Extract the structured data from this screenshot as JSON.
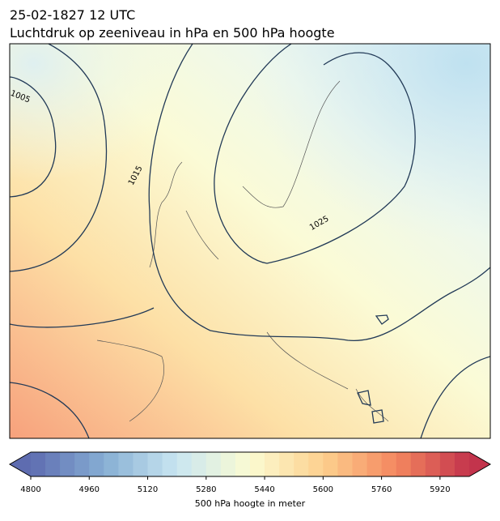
{
  "header": {
    "time": "25-02-1827 12 UTC",
    "title": "Luchtdruk op zeeniveau in hPa en 500 hPa hoogte"
  },
  "contour_labels": [
    "1005",
    "1015",
    "1025"
  ],
  "colorbar": {
    "lim": [
      4800,
      6000
    ],
    "ticks": [
      4800,
      4960,
      5120,
      5280,
      5440,
      5600,
      5760,
      5920
    ],
    "label": "500 hPa hoogte in meter",
    "colormap": [
      "#5e6cb0",
      "#86aed3",
      "#c9e6f1",
      "#fbfbd2",
      "#fdd08e",
      "#f4875f",
      "#c3344c"
    ]
  }
}
